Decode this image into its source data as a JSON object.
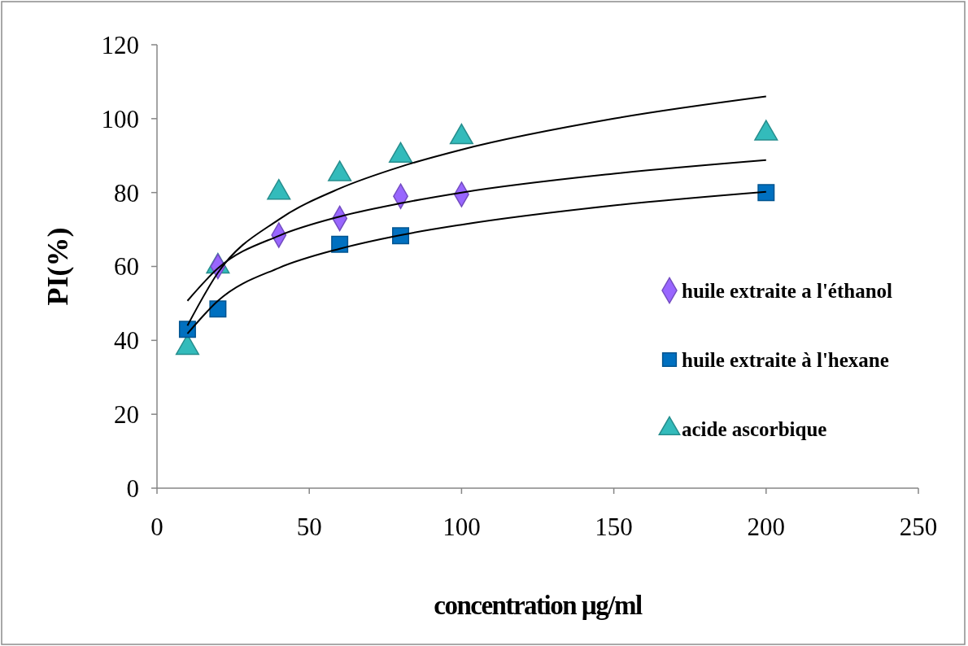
{
  "chart_data": {
    "type": "scatter",
    "xlabel": "concentration µg/ml",
    "ylabel": "PI(%)",
    "xlim": [
      0,
      250
    ],
    "xticks": [
      0,
      50,
      100,
      150,
      200,
      250
    ],
    "ylim": [
      0,
      120
    ],
    "yticks": [
      0,
      20,
      40,
      60,
      80,
      100,
      120
    ],
    "grid": false,
    "legend": "right",
    "series": [
      {
        "name": "huile extraite a l'éthanol",
        "color": "#9966ff",
        "marker": "diamond",
        "x": [
          20,
          40,
          60,
          80,
          100
        ],
        "values": [
          60,
          68.5,
          73,
          79,
          79.5
        ]
      },
      {
        "name": "huile extraite à l'hexane",
        "color": "#0070c0",
        "marker": "square",
        "x": [
          10,
          20,
          60,
          80,
          200
        ],
        "values": [
          43,
          48.5,
          66,
          68.3,
          80
        ]
      },
      {
        "name": "acide ascorbique",
        "color": "#33bbbb",
        "marker": "triangle",
        "x": [
          10,
          20,
          40,
          60,
          80,
          100,
          200
        ],
        "values": [
          38,
          60,
          80,
          85,
          90,
          95,
          96
        ]
      },
      {
        "type": "line",
        "color": "#000000",
        "marker": "none",
        "x": [
          10,
          20,
          40,
          60,
          80,
          100,
          150,
          200
        ],
        "values": [
          50.7,
          59.5,
          68.3,
          73.5,
          77.1,
          80,
          85.1,
          88.8
        ]
      },
      {
        "type": "line",
        "color": "#000000",
        "marker": "none",
        "x": [
          10,
          20,
          40,
          60,
          80,
          100,
          150,
          200
        ],
        "values": [
          41.8,
          50.7,
          59.6,
          64.8,
          68.5,
          71.3,
          76.5,
          80.2
        ]
      },
      {
        "type": "line",
        "color": "#000000",
        "marker": "none",
        "x": [
          10,
          20,
          40,
          60,
          80,
          100,
          150,
          200
        ],
        "values": [
          44,
          58.3,
          72.7,
          81.1,
          87,
          91.6,
          100,
          106
        ]
      }
    ]
  }
}
